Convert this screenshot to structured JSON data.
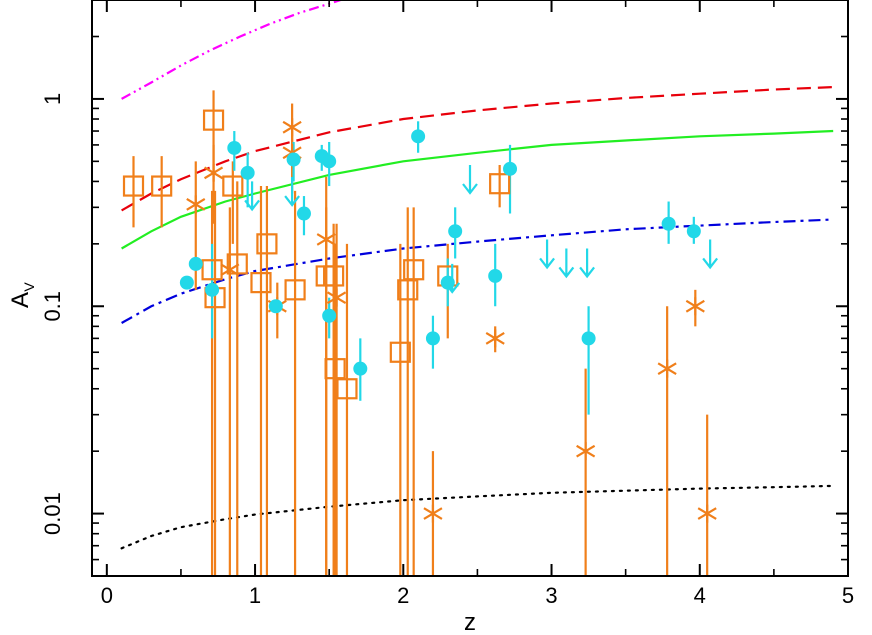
{
  "chart_data": {
    "type": "scatter",
    "title": "",
    "xlabel": "z",
    "ylabel": "A",
    "ylabel_subscript": "V",
    "xlim": [
      -0.1,
      5.0
    ],
    "ylim": [
      0.005,
      3.0
    ],
    "y_scale": "log",
    "grid": false,
    "legend": "none",
    "x_ticks": [
      "0",
      "1",
      "2",
      "3",
      "4",
      "5"
    ],
    "y_ticks": [
      "0.01",
      "0.1",
      "1"
    ],
    "curves": [
      {
        "style": "dash-dot-dot",
        "color": "#ff00ff",
        "x": [
          0.1,
          0.3,
          0.5,
          0.7,
          0.9,
          1.1,
          1.3,
          1.5,
          1.7
        ],
        "y": [
          1.0,
          1.2,
          1.45,
          1.72,
          2.0,
          2.3,
          2.6,
          2.88,
          3.2
        ]
      },
      {
        "style": "dashed",
        "color": "#e8000b",
        "x": [
          0.1,
          0.3,
          0.5,
          0.8,
          1.0,
          1.5,
          2.0,
          2.5,
          3.0,
          3.5,
          4.0,
          4.5,
          4.9
        ],
        "y": [
          0.29,
          0.35,
          0.41,
          0.5,
          0.56,
          0.69,
          0.8,
          0.88,
          0.95,
          1.01,
          1.06,
          1.11,
          1.14
        ]
      },
      {
        "style": "solid",
        "color": "#22ee22",
        "x": [
          0.1,
          0.3,
          0.5,
          0.8,
          1.0,
          1.5,
          2.0,
          2.5,
          3.0,
          3.5,
          4.0,
          4.5,
          4.9
        ],
        "y": [
          0.19,
          0.23,
          0.27,
          0.32,
          0.35,
          0.43,
          0.5,
          0.55,
          0.6,
          0.63,
          0.66,
          0.68,
          0.7
        ]
      },
      {
        "style": "dash-dot",
        "color": "#0000dd",
        "x": [
          0.1,
          0.3,
          0.5,
          0.8,
          1.0,
          1.5,
          2.0,
          2.5,
          3.0,
          3.5,
          4.0,
          4.5,
          4.9
        ],
        "y": [
          0.083,
          0.1,
          0.115,
          0.135,
          0.148,
          0.17,
          0.19,
          0.205,
          0.22,
          0.235,
          0.245,
          0.255,
          0.262
        ]
      },
      {
        "style": "dotted",
        "color": "#000000",
        "x": [
          0.1,
          0.3,
          0.5,
          0.8,
          1.0,
          1.5,
          2.0,
          2.5,
          3.0,
          3.5,
          4.0,
          4.5,
          4.9
        ],
        "y": [
          0.0068,
          0.0078,
          0.0086,
          0.0094,
          0.0099,
          0.0108,
          0.0116,
          0.0121,
          0.0126,
          0.0129,
          0.0132,
          0.0134,
          0.0136
        ]
      }
    ],
    "series": [
      {
        "marker": "square",
        "color": "#f07f1a",
        "points": [
          {
            "x": 0.18,
            "y": 0.38,
            "ylo": 0.24,
            "yhi": 0.53
          },
          {
            "x": 0.37,
            "y": 0.38,
            "ylo": 0.24,
            "yhi": 0.53
          },
          {
            "x": 0.72,
            "y": 0.79,
            "ylo": 0.4,
            "yhi": 1.1
          },
          {
            "x": 0.71,
            "y": 0.15,
            "ylo": 0.005,
            "yhi": 0.36
          },
          {
            "x": 0.73,
            "y": 0.11,
            "ylo": 0.005,
            "yhi": 0.36
          },
          {
            "x": 0.85,
            "y": 0.38,
            "ylo": 0.2,
            "yhi": 0.5
          },
          {
            "x": 0.88,
            "y": 0.16,
            "ylo": 0.005,
            "yhi": 0.4
          },
          {
            "x": 1.04,
            "y": 0.13,
            "ylo": 0.005,
            "yhi": 0.38
          },
          {
            "x": 1.08,
            "y": 0.2,
            "ylo": 0.005,
            "yhi": 0.38
          },
          {
            "x": 1.27,
            "y": 0.12,
            "ylo": 0.005,
            "yhi": 0.36
          },
          {
            "x": 1.48,
            "y": 0.14,
            "ylo": 0.005,
            "yhi": 0.3
          },
          {
            "x": 1.53,
            "y": 0.14,
            "ylo": 0.005,
            "yhi": 0.25
          },
          {
            "x": 1.54,
            "y": 0.05,
            "ylo": 0.005,
            "yhi": 0.2
          },
          {
            "x": 1.62,
            "y": 0.04,
            "ylo": 0.005,
            "yhi": 0.2
          },
          {
            "x": 1.98,
            "y": 0.06,
            "ylo": 0.005,
            "yhi": 0.2
          },
          {
            "x": 2.03,
            "y": 0.12,
            "ylo": 0.005,
            "yhi": 0.3
          },
          {
            "x": 2.07,
            "y": 0.15,
            "ylo": 0.005,
            "yhi": 0.3
          },
          {
            "x": 2.3,
            "y": 0.14,
            "ylo": 0.07,
            "yhi": 0.2
          },
          {
            "x": 2.65,
            "y": 0.39,
            "ylo": 0.3,
            "yhi": 0.48
          }
        ]
      },
      {
        "marker": "cross",
        "color": "#f07f1a",
        "points": [
          {
            "x": 0.6,
            "y": 0.31,
            "ylo": 0.12,
            "yhi": 0.5
          },
          {
            "x": 0.72,
            "y": 0.44,
            "ylo": 0.25,
            "yhi": 0.6
          },
          {
            "x": 0.83,
            "y": 0.15,
            "ylo": 0.005,
            "yhi": 0.3
          },
          {
            "x": 1.15,
            "y": 0.1,
            "ylo": 0.07,
            "yhi": 0.13
          },
          {
            "x": 1.25,
            "y": 0.73,
            "ylo": 0.5,
            "yhi": 0.95
          },
          {
            "x": 1.25,
            "y": 0.55,
            "ylo": 0.35,
            "yhi": 0.7
          },
          {
            "x": 1.48,
            "y": 0.21,
            "ylo": 0.005,
            "yhi": 0.42
          },
          {
            "x": 1.55,
            "y": 0.11,
            "ylo": 0.005,
            "yhi": 0.25
          },
          {
            "x": 2.2,
            "y": 0.01,
            "ylo": 0.005,
            "yhi": 0.02
          },
          {
            "x": 2.62,
            "y": 0.07,
            "ylo": 0.06,
            "yhi": 0.08
          },
          {
            "x": 3.23,
            "y": 0.02,
            "ylo": 0.005,
            "yhi": 0.05
          },
          {
            "x": 3.78,
            "y": 0.05,
            "ylo": 0.005,
            "yhi": 0.1
          },
          {
            "x": 3.97,
            "y": 0.1,
            "ylo": 0.08,
            "yhi": 0.12
          },
          {
            "x": 4.05,
            "y": 0.01,
            "ylo": 0.005,
            "yhi": 0.03
          }
        ]
      },
      {
        "marker": "circle",
        "color": "#22d8e8",
        "points": [
          {
            "x": 0.54,
            "y": 0.13
          },
          {
            "x": 0.6,
            "y": 0.16
          },
          {
            "x": 0.71,
            "y": 0.12,
            "ylo": 0.07,
            "yhi": 0.2
          },
          {
            "x": 0.86,
            "y": 0.58,
            "ylo": 0.45,
            "yhi": 0.7
          },
          {
            "x": 0.95,
            "y": 0.44,
            "ylo": 0.3,
            "yhi": 0.55
          },
          {
            "x": 1.14,
            "y": 0.1
          },
          {
            "x": 1.26,
            "y": 0.51,
            "ylo": 0.4,
            "yhi": 0.62
          },
          {
            "x": 1.33,
            "y": 0.28,
            "ylo": 0.22,
            "yhi": 0.34
          },
          {
            "x": 1.45,
            "y": 0.53,
            "ylo": 0.45,
            "yhi": 0.6
          },
          {
            "x": 1.5,
            "y": 0.09,
            "ylo": 0.07,
            "yhi": 0.11
          },
          {
            "x": 1.5,
            "y": 0.5,
            "ylo": 0.38,
            "yhi": 0.62
          },
          {
            "x": 1.71,
            "y": 0.05,
            "ylo": 0.035,
            "yhi": 0.07
          },
          {
            "x": 2.1,
            "y": 0.66,
            "ylo": 0.55,
            "yhi": 0.78
          },
          {
            "x": 2.2,
            "y": 0.07,
            "ylo": 0.05,
            "yhi": 0.09
          },
          {
            "x": 2.3,
            "y": 0.13,
            "ylo": 0.1,
            "yhi": 0.17
          },
          {
            "x": 2.35,
            "y": 0.23,
            "ylo": 0.17,
            "yhi": 0.3
          },
          {
            "x": 2.62,
            "y": 0.14,
            "ylo": 0.1,
            "yhi": 0.2
          },
          {
            "x": 2.72,
            "y": 0.46,
            "ylo": 0.28,
            "yhi": 0.6
          },
          {
            "x": 3.25,
            "y": 0.07,
            "ylo": 0.03,
            "yhi": 0.1
          },
          {
            "x": 3.79,
            "y": 0.25,
            "ylo": 0.2,
            "yhi": 0.32
          },
          {
            "x": 3.96,
            "y": 0.23,
            "ylo": 0.2,
            "yhi": 0.27
          }
        ]
      },
      {
        "marker": "upper-limit-arrow",
        "color": "#22d8e8",
        "points": [
          {
            "x": 0.98,
            "y": 0.4
          },
          {
            "x": 1.25,
            "y": 0.42
          },
          {
            "x": 2.45,
            "y": 0.48
          },
          {
            "x": 2.33,
            "y": 0.16
          },
          {
            "x": 2.97,
            "y": 0.21
          },
          {
            "x": 3.1,
            "y": 0.19
          },
          {
            "x": 3.24,
            "y": 0.19
          },
          {
            "x": 4.07,
            "y": 0.21
          }
        ]
      }
    ]
  }
}
